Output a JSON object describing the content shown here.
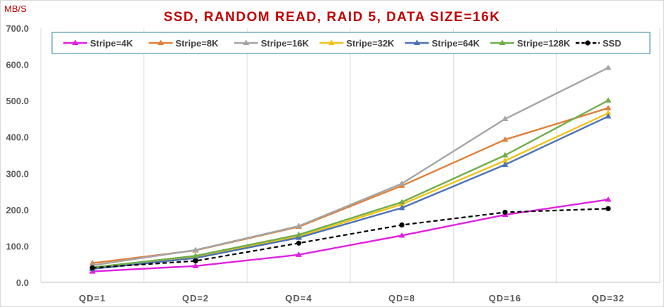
{
  "chart_data": {
    "type": "line",
    "title": "SSD, RANDOM READ, RAID 5, DATA SIZE=16K",
    "ylabel": "MB/S",
    "xlabel": "",
    "categories": [
      "QD=1",
      "QD=2",
      "QD=4",
      "QD=8",
      "QD=16",
      "QD=32"
    ],
    "ylim": [
      0,
      700
    ],
    "yticks": [
      "0.0",
      "100.0",
      "200.0",
      "300.0",
      "400.0",
      "500.0",
      "600.0",
      "700.0"
    ],
    "grid": "vertical lines at each category",
    "legend_position": "top",
    "series": [
      {
        "name": "Stripe=4K",
        "color": "#e020e0",
        "marker": "triangle",
        "dash": false,
        "values": [
          30,
          45,
          76,
          129,
          186,
          228
        ]
      },
      {
        "name": "Stripe=8K",
        "color": "#e0803a",
        "marker": "triangle",
        "dash": false,
        "values": [
          53,
          88,
          153,
          266,
          393,
          480
        ]
      },
      {
        "name": "Stripe=16K",
        "color": "#a5a5a5",
        "marker": "triangle",
        "dash": false,
        "values": [
          47,
          89,
          155,
          272,
          450,
          591
        ]
      },
      {
        "name": "Stripe=32K",
        "color": "#f2c21a",
        "marker": "triangle",
        "dash": false,
        "values": [
          40,
          70,
          126,
          215,
          335,
          466
        ]
      },
      {
        "name": "Stripe=64K",
        "color": "#4a72b8",
        "marker": "triangle",
        "dash": false,
        "values": [
          37,
          67,
          123,
          205,
          324,
          457
        ]
      },
      {
        "name": "Stripe=128K",
        "color": "#70ad47",
        "marker": "triangle",
        "dash": false,
        "values": [
          41,
          73,
          131,
          221,
          350,
          501
        ]
      },
      {
        "name": "SSD",
        "color": "#000000",
        "marker": "circle",
        "dash": true,
        "values": [
          40,
          59,
          108,
          158,
          193,
          203
        ]
      }
    ]
  }
}
